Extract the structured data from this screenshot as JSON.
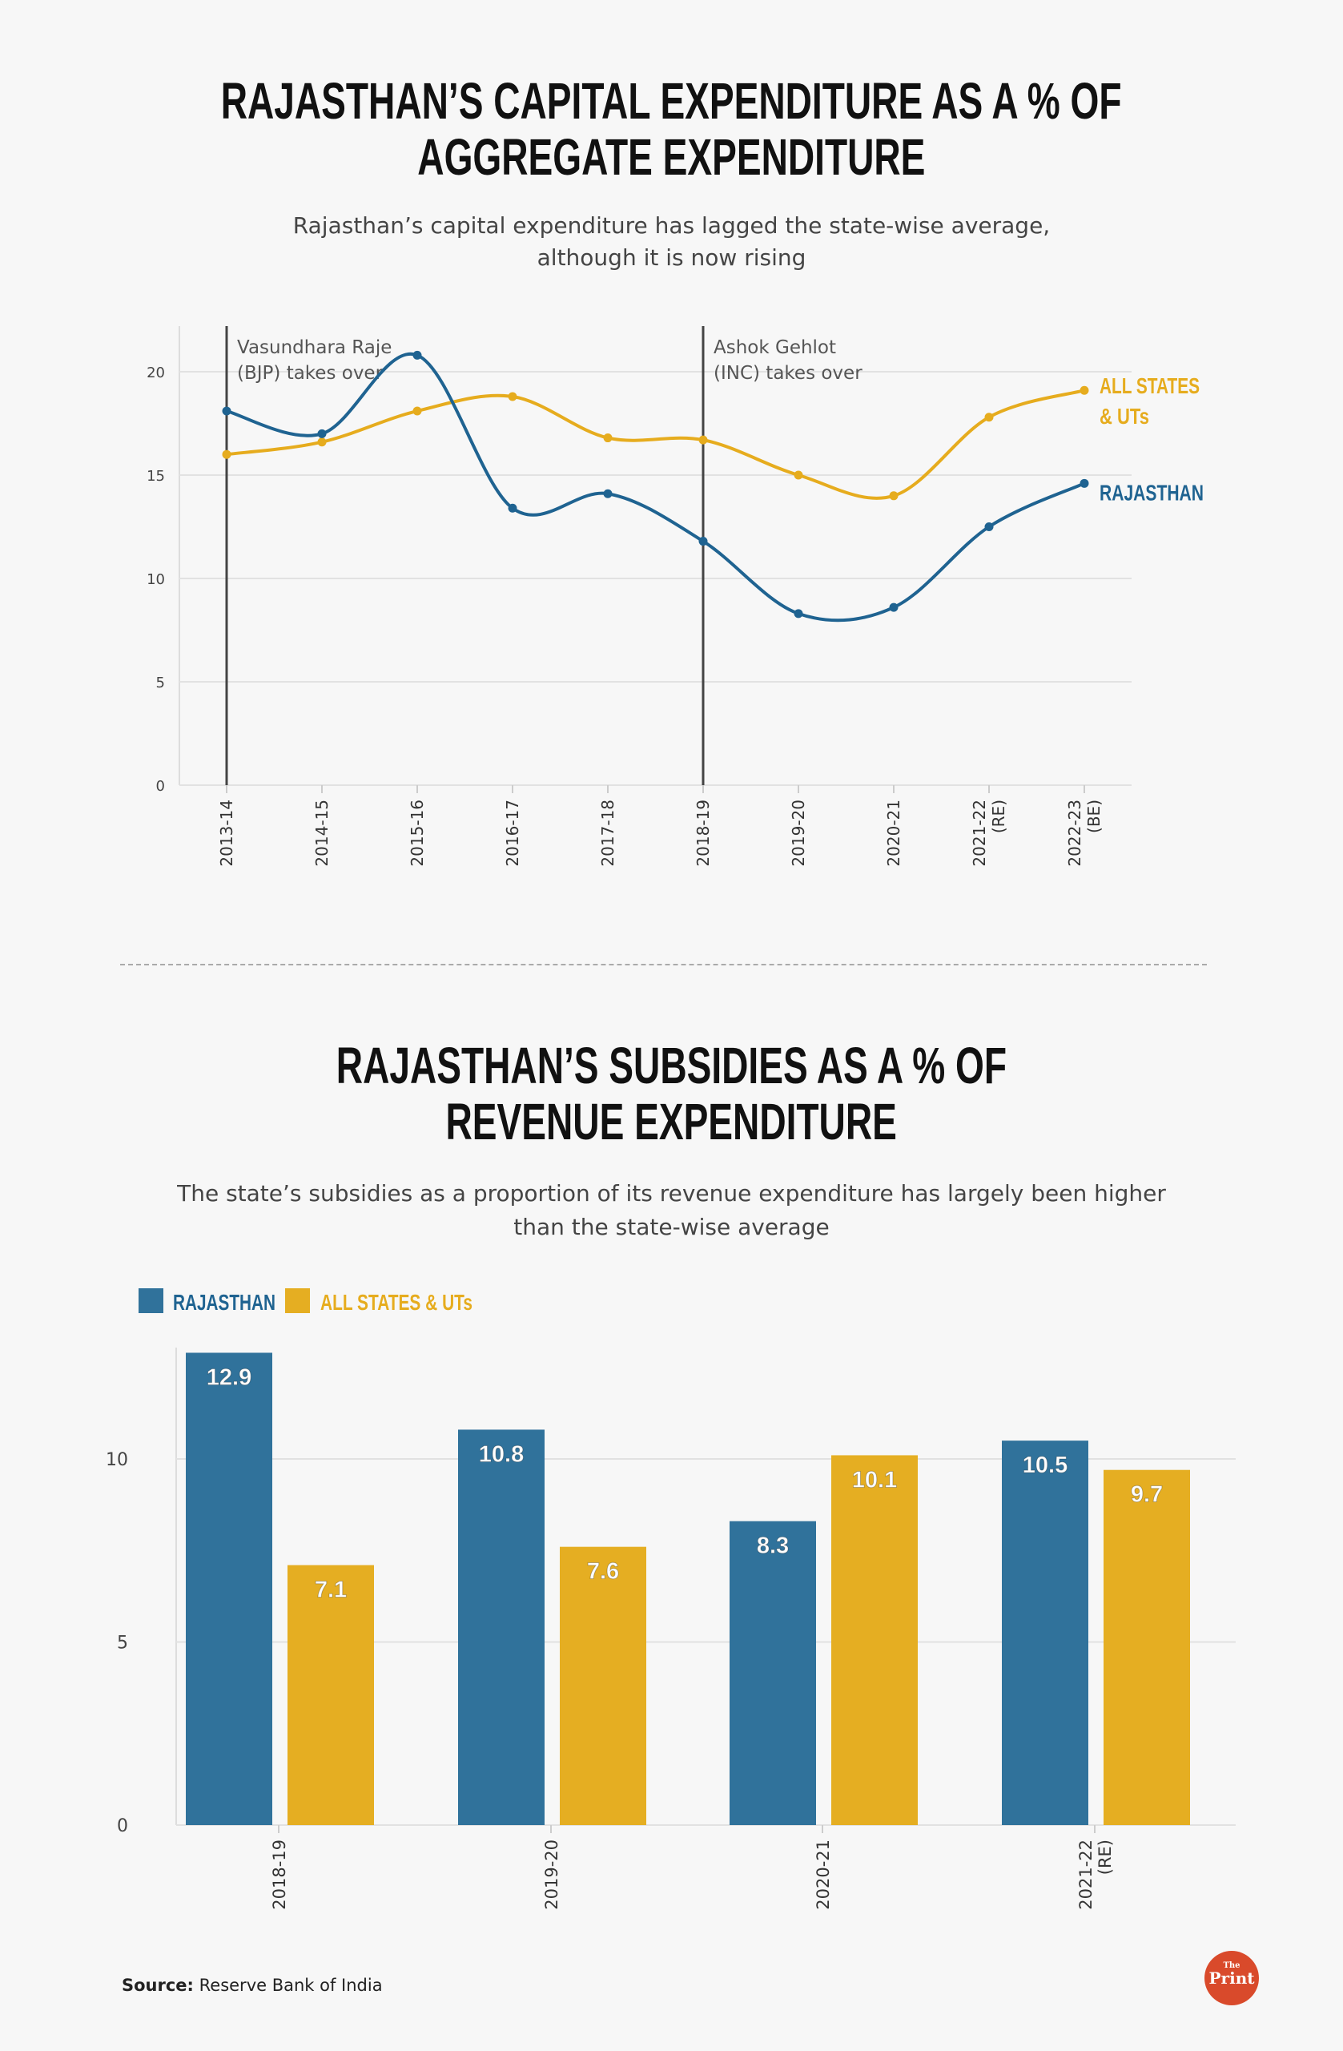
{
  "colors": {
    "rajasthan": "#1f6391",
    "all_states": "#e6ac1e",
    "bar_rajasthan": "#30729b",
    "bar_all_states": "#e5ae22",
    "logo": "#d94a2b"
  },
  "chart_data": [
    {
      "type": "line",
      "title": [
        "RAJASTHAN’S CAPITAL EXPENDITURE AS A % OF",
        "AGGREGATE EXPENDITURE"
      ],
      "subtitle": [
        "Rajasthan’s capital expenditure has lagged the state-wise average,",
        "although it is now rising"
      ],
      "categories": [
        "2013-14",
        "2014-15",
        "2015-16",
        "2016-17",
        "2017-18",
        "2018-19",
        "2019-20",
        "2020-21",
        "2021-22 (RE)",
        "2022-23 (BE)"
      ],
      "category_labels": [
        [
          "2013-14"
        ],
        [
          "2014-15"
        ],
        [
          "2015-16"
        ],
        [
          "2016-17"
        ],
        [
          "2017-18"
        ],
        [
          "2018-19"
        ],
        [
          "2019-20"
        ],
        [
          "2020-21"
        ],
        [
          "2021-22",
          "(RE)"
        ],
        [
          "2022-23",
          "(BE)"
        ]
      ],
      "series": [
        {
          "name": "RAJASTHAN",
          "values": [
            18.1,
            17.0,
            20.8,
            13.4,
            14.1,
            11.8,
            8.3,
            8.6,
            12.5,
            14.6
          ]
        },
        {
          "name": "ALL STATES & UTs",
          "name_lines": [
            "ALL STATES",
            "& UTs"
          ],
          "values": [
            16.0,
            16.6,
            18.1,
            18.8,
            16.8,
            16.7,
            15.0,
            14.0,
            17.8,
            19.1
          ]
        }
      ],
      "ylim": [
        0,
        22
      ],
      "yticks": [
        0,
        5,
        10,
        15,
        20
      ],
      "grid": true,
      "legend": "right, end-of-line labels",
      "annotations": [
        {
          "category": "2013-14",
          "lines": [
            "Vasundhara Raje",
            "(BJP) takes over"
          ]
        },
        {
          "category": "2018-19",
          "lines": [
            "Ashok Gehlot",
            "(INC) takes over"
          ]
        }
      ]
    },
    {
      "type": "bar",
      "title": [
        "RAJASTHAN’S SUBSIDIES AS A % OF",
        "REVENUE EXPENDITURE"
      ],
      "subtitle": [
        "The state’s subsidies as a proportion of its revenue expenditure has largely been higher",
        "than the state-wise average"
      ],
      "categories": [
        "2018-19",
        "2019-20",
        "2020-21",
        "2021-22 (RE)"
      ],
      "category_labels": [
        [
          "2018-19"
        ],
        [
          "2019-20"
        ],
        [
          "2020-21"
        ],
        [
          "2021-22",
          "(RE)"
        ]
      ],
      "series": [
        {
          "name": "RAJASTHAN",
          "values": [
            12.9,
            10.8,
            8.3,
            10.5
          ]
        },
        {
          "name": "ALL STATES & UTs",
          "values": [
            7.1,
            7.6,
            10.1,
            9.7
          ]
        }
      ],
      "ylim": [
        0,
        13
      ],
      "yticks": [
        0,
        5,
        10
      ],
      "grid": true,
      "legend": "top-left"
    }
  ],
  "footer": {
    "source_label": "Source:",
    "source_text": " Reserve Bank of India",
    "logo_text_small": "The",
    "logo_text": "Print"
  }
}
